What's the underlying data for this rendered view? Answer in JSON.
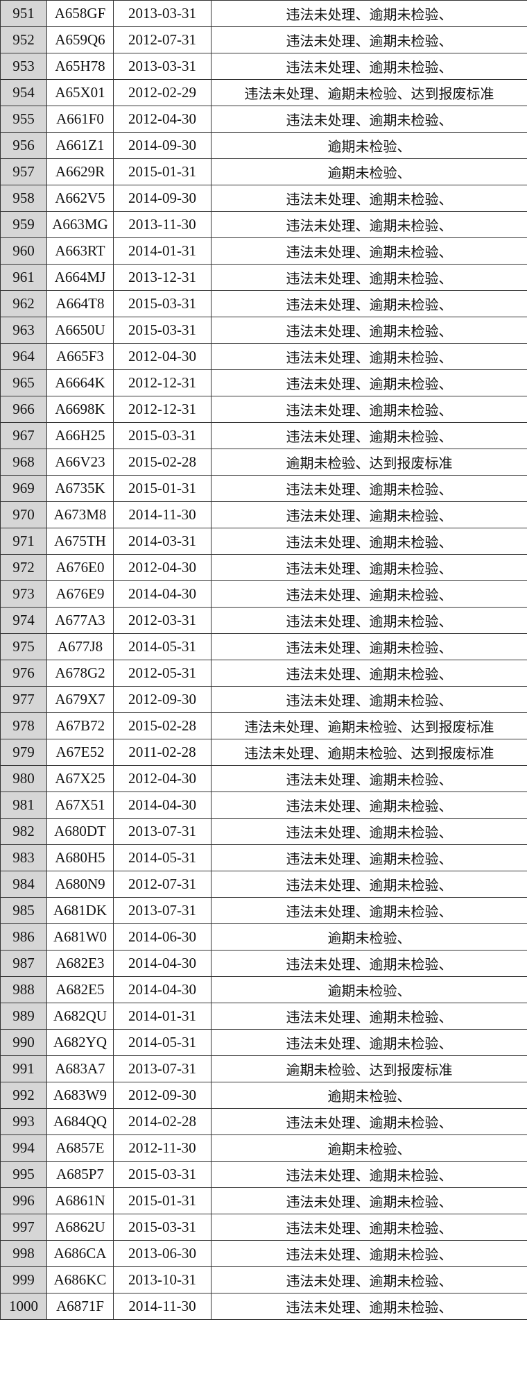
{
  "rows": [
    [
      "951",
      "A658GF",
      "2013-03-31",
      "违法未处理、逾期未检验、"
    ],
    [
      "952",
      "A659Q6",
      "2012-07-31",
      "违法未处理、逾期未检验、"
    ],
    [
      "953",
      "A65H78",
      "2013-03-31",
      "违法未处理、逾期未检验、"
    ],
    [
      "954",
      "A65X01",
      "2012-02-29",
      "违法未处理、逾期未检验、达到报废标准"
    ],
    [
      "955",
      "A661F0",
      "2012-04-30",
      "违法未处理、逾期未检验、"
    ],
    [
      "956",
      "A661Z1",
      "2014-09-30",
      "逾期未检验、"
    ],
    [
      "957",
      "A6629R",
      "2015-01-31",
      "逾期未检验、"
    ],
    [
      "958",
      "A662V5",
      "2014-09-30",
      "违法未处理、逾期未检验、"
    ],
    [
      "959",
      "A663MG",
      "2013-11-30",
      "违法未处理、逾期未检验、"
    ],
    [
      "960",
      "A663RT",
      "2014-01-31",
      "违法未处理、逾期未检验、"
    ],
    [
      "961",
      "A664MJ",
      "2013-12-31",
      "违法未处理、逾期未检验、"
    ],
    [
      "962",
      "A664T8",
      "2015-03-31",
      "违法未处理、逾期未检验、"
    ],
    [
      "963",
      "A6650U",
      "2015-03-31",
      "违法未处理、逾期未检验、"
    ],
    [
      "964",
      "A665F3",
      "2012-04-30",
      "违法未处理、逾期未检验、"
    ],
    [
      "965",
      "A6664K",
      "2012-12-31",
      "违法未处理、逾期未检验、"
    ],
    [
      "966",
      "A6698K",
      "2012-12-31",
      "违法未处理、逾期未检验、"
    ],
    [
      "967",
      "A66H25",
      "2015-03-31",
      "违法未处理、逾期未检验、"
    ],
    [
      "968",
      "A66V23",
      "2015-02-28",
      "逾期未检验、达到报废标准"
    ],
    [
      "969",
      "A6735K",
      "2015-01-31",
      "违法未处理、逾期未检验、"
    ],
    [
      "970",
      "A673M8",
      "2014-11-30",
      "违法未处理、逾期未检验、"
    ],
    [
      "971",
      "A675TH",
      "2014-03-31",
      "违法未处理、逾期未检验、"
    ],
    [
      "972",
      "A676E0",
      "2012-04-30",
      "违法未处理、逾期未检验、"
    ],
    [
      "973",
      "A676E9",
      "2014-04-30",
      "违法未处理、逾期未检验、"
    ],
    [
      "974",
      "A677A3",
      "2012-03-31",
      "违法未处理、逾期未检验、"
    ],
    [
      "975",
      "A677J8",
      "2014-05-31",
      "违法未处理、逾期未检验、"
    ],
    [
      "976",
      "A678G2",
      "2012-05-31",
      "违法未处理、逾期未检验、"
    ],
    [
      "977",
      "A679X7",
      "2012-09-30",
      "违法未处理、逾期未检验、"
    ],
    [
      "978",
      "A67B72",
      "2015-02-28",
      "违法未处理、逾期未检验、达到报废标准"
    ],
    [
      "979",
      "A67E52",
      "2011-02-28",
      "违法未处理、逾期未检验、达到报废标准"
    ],
    [
      "980",
      "A67X25",
      "2012-04-30",
      "违法未处理、逾期未检验、"
    ],
    [
      "981",
      "A67X51",
      "2014-04-30",
      "违法未处理、逾期未检验、"
    ],
    [
      "982",
      "A680DT",
      "2013-07-31",
      "违法未处理、逾期未检验、"
    ],
    [
      "983",
      "A680H5",
      "2014-05-31",
      "违法未处理、逾期未检验、"
    ],
    [
      "984",
      "A680N9",
      "2012-07-31",
      "违法未处理、逾期未检验、"
    ],
    [
      "985",
      "A681DK",
      "2013-07-31",
      "违法未处理、逾期未检验、"
    ],
    [
      "986",
      "A681W0",
      "2014-06-30",
      "逾期未检验、"
    ],
    [
      "987",
      "A682E3",
      "2014-04-30",
      "违法未处理、逾期未检验、"
    ],
    [
      "988",
      "A682E5",
      "2014-04-30",
      "逾期未检验、"
    ],
    [
      "989",
      "A682QU",
      "2014-01-31",
      "违法未处理、逾期未检验、"
    ],
    [
      "990",
      "A682YQ",
      "2014-05-31",
      "违法未处理、逾期未检验、"
    ],
    [
      "991",
      "A683A7",
      "2013-07-31",
      "逾期未检验、达到报废标准"
    ],
    [
      "992",
      "A683W9",
      "2012-09-30",
      "逾期未检验、"
    ],
    [
      "993",
      "A684QQ",
      "2014-02-28",
      "违法未处理、逾期未检验、"
    ],
    [
      "994",
      "A6857E",
      "2012-11-30",
      "逾期未检验、"
    ],
    [
      "995",
      "A685P7",
      "2015-03-31",
      "违法未处理、逾期未检验、"
    ],
    [
      "996",
      "A6861N",
      "2015-01-31",
      "违法未处理、逾期未检验、"
    ],
    [
      "997",
      "A6862U",
      "2015-03-31",
      "违法未处理、逾期未检验、"
    ],
    [
      "998",
      "A686CA",
      "2013-06-30",
      "违法未处理、逾期未检验、"
    ],
    [
      "999",
      "A686KC",
      "2013-10-31",
      "违法未处理、逾期未检验、"
    ],
    [
      "1000",
      "A6871F",
      "2014-11-30",
      "违法未处理、逾期未检验、"
    ]
  ]
}
